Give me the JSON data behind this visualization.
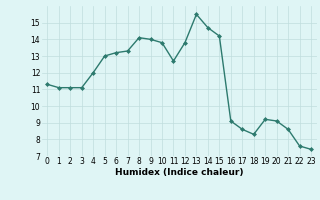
{
  "x": [
    0,
    1,
    2,
    3,
    4,
    5,
    6,
    7,
    8,
    9,
    10,
    11,
    12,
    13,
    14,
    15,
    16,
    17,
    18,
    19,
    20,
    21,
    22,
    23
  ],
  "y": [
    11.3,
    11.1,
    11.1,
    11.1,
    12.0,
    13.0,
    13.2,
    13.3,
    14.1,
    14.0,
    13.8,
    12.7,
    13.8,
    15.5,
    14.7,
    14.2,
    9.1,
    8.6,
    8.3,
    9.2,
    9.1,
    8.6,
    7.6,
    7.4
  ],
  "xlabel": "Humidex (Indice chaleur)",
  "ylim": [
    7,
    16
  ],
  "xlim": [
    -0.5,
    23.5
  ],
  "yticks": [
    7,
    8,
    9,
    10,
    11,
    12,
    13,
    14,
    15
  ],
  "xticks": [
    0,
    1,
    2,
    3,
    4,
    5,
    6,
    7,
    8,
    9,
    10,
    11,
    12,
    13,
    14,
    15,
    16,
    17,
    18,
    19,
    20,
    21,
    22,
    23
  ],
  "line_color": "#2d7a6e",
  "marker": "D",
  "marker_size": 2.0,
  "bg_color": "#dff5f5",
  "grid_color": "#c0dede",
  "line_width": 1.0,
  "tick_fontsize": 5.5,
  "xlabel_fontsize": 6.5
}
